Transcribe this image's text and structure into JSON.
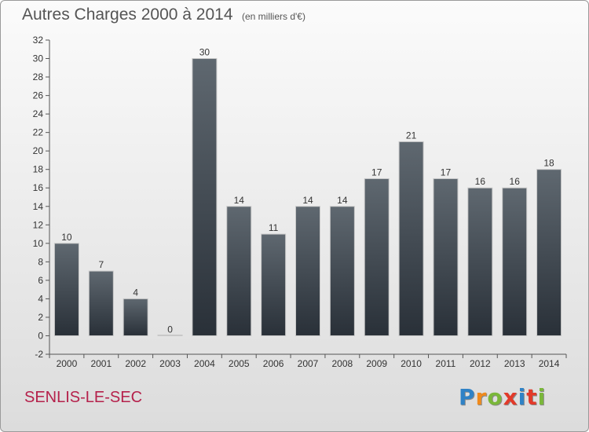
{
  "header": {
    "title": "Autres Charges 2000 à 2014",
    "subtitle": "(en milliers d'€)"
  },
  "footer": {
    "commune": "SENLIS-LE-SEC",
    "logo_letters": [
      "P",
      "r",
      "o",
      "x",
      "i",
      "t",
      "i"
    ]
  },
  "colors": {
    "bar_top": "#5f6870",
    "bar_bottom": "#293038",
    "commune": "#b5214b",
    "logo": [
      "#2f82c6",
      "#f08a1c",
      "#7ab73a",
      "#e23a2a",
      "#2f82c6",
      "#e23a2a",
      "#7ab73a"
    ]
  },
  "chart_data": {
    "type": "bar",
    "title": "Autres Charges 2000 à 2014",
    "subtitle": "(en milliers d'€)",
    "xlabel": "",
    "ylabel": "",
    "categories": [
      "2000",
      "2001",
      "2002",
      "2003",
      "2004",
      "2005",
      "2006",
      "2007",
      "2008",
      "2009",
      "2010",
      "2011",
      "2012",
      "2013",
      "2014"
    ],
    "values": [
      10,
      7,
      4,
      0,
      30,
      14,
      11,
      14,
      14,
      17,
      21,
      17,
      16,
      16,
      18
    ],
    "ylim": [
      -2,
      32
    ],
    "yticks": [
      -2,
      0,
      2,
      4,
      6,
      8,
      10,
      12,
      14,
      16,
      18,
      20,
      22,
      24,
      26,
      28,
      30,
      32
    ],
    "grid": false,
    "legend": "none"
  }
}
